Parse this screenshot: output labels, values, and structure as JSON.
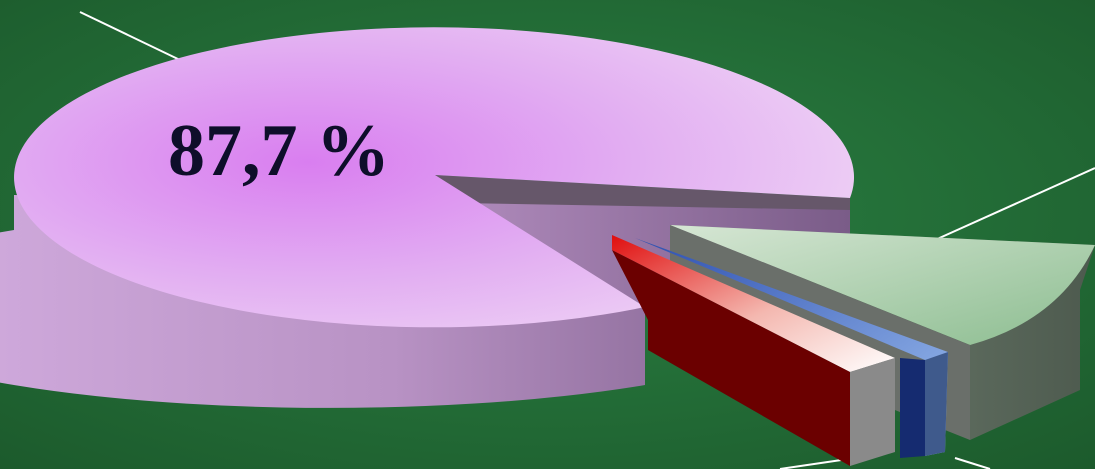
{
  "chart_data": {
    "type": "pie",
    "title": "",
    "categories": [
      "",
      "",
      "",
      ""
    ],
    "values": [
      87.7,
      9.0,
      2.0,
      1.3
    ],
    "slices": [
      {
        "label": "87,7 %",
        "value": 87.7,
        "color_top": "#d98ef2",
        "color_side": "#c9a0d6"
      },
      {
        "label": "",
        "value": 9.0,
        "color_top": "#a6c8a8",
        "color_side": "#6f7c70"
      },
      {
        "label": "",
        "value": 2.0,
        "color_top": "#5b80d6",
        "color_side": "#1a2f78"
      },
      {
        "label": "",
        "value": 1.3,
        "color_top": "#e01818",
        "color_side": "#6e0000"
      }
    ],
    "style": "3d-exploded",
    "legend": "none",
    "grid": false
  },
  "colors": {
    "background": "#24743a",
    "background_dark": "#1c5a2c",
    "leader_lines": "#ffffff"
  }
}
